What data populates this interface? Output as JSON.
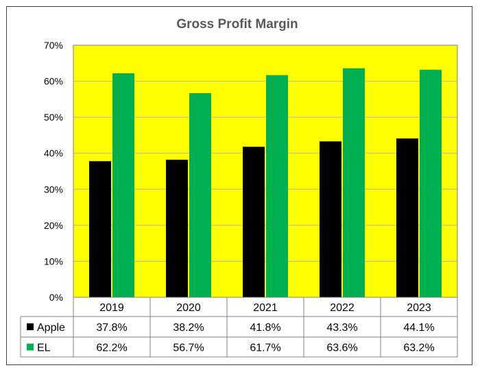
{
  "chart_data": {
    "type": "bar",
    "title": "Gross Profit Margin",
    "categories": [
      "2019",
      "2020",
      "2021",
      "2022",
      "2023"
    ],
    "series": [
      {
        "name": "Apple",
        "values": [
          37.8,
          38.2,
          41.8,
          43.3,
          44.1
        ],
        "labels": [
          "37.8%",
          "38.2%",
          "41.8%",
          "43.3%",
          "44.1%"
        ],
        "color": "#000000"
      },
      {
        "name": "EL",
        "values": [
          62.2,
          56.7,
          61.7,
          63.6,
          63.2
        ],
        "labels": [
          "62.2%",
          "56.7%",
          "61.7%",
          "63.6%",
          "63.2%"
        ],
        "color": "#00b050"
      }
    ],
    "ylim": [
      0,
      70
    ],
    "yticks": [
      "0%",
      "10%",
      "20%",
      "30%",
      "40%",
      "50%",
      "60%",
      "70%"
    ],
    "plot_background": "#ffff00",
    "grid": true,
    "legend": "data-table"
  }
}
